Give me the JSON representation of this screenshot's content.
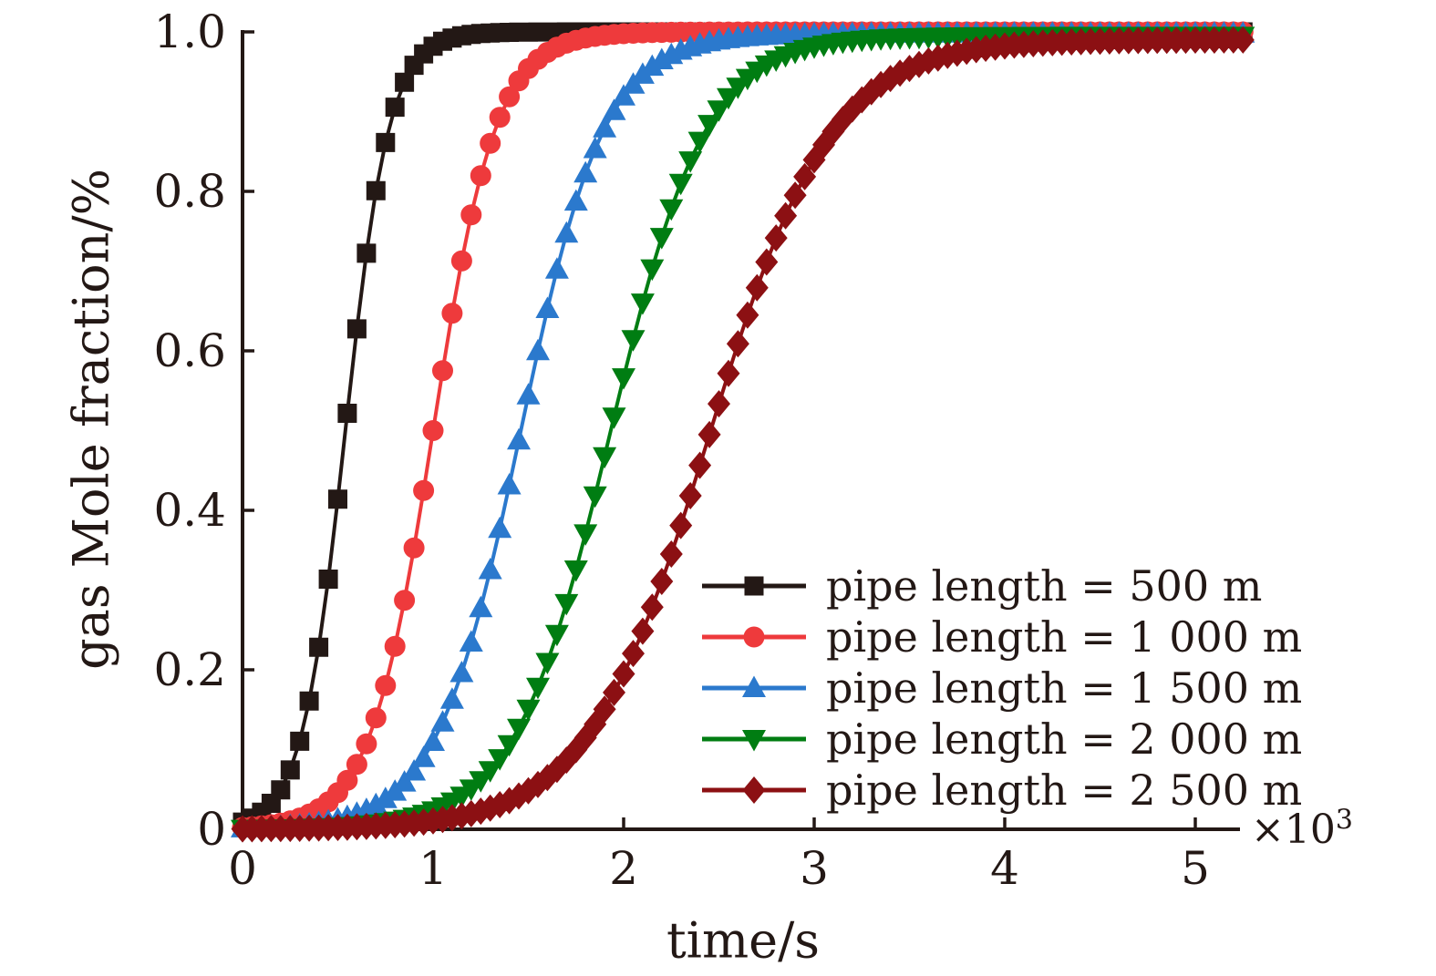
{
  "figure": {
    "background": "#ffffff",
    "text_color": "#231815",
    "axis_color": "#231815"
  },
  "chart_data": {
    "type": "line",
    "title": "",
    "xlabel": "time/s",
    "ylabel": "gas Mole fraction/%",
    "grid": false,
    "legend_position": "lower-right-inside",
    "x_axis": {
      "min": 0,
      "max": 5.35,
      "ticks": [
        0,
        1,
        2,
        3,
        4,
        5
      ],
      "tick_labels": [
        "0",
        "1",
        "2",
        "3",
        "4",
        "5"
      ],
      "offset_base": "×10",
      "offset_exponent": "3"
    },
    "y_axis": {
      "min": 0,
      "max": 1.0,
      "ticks": [
        0,
        0.2,
        0.4,
        0.6,
        0.8,
        1.0
      ],
      "tick_labels": [
        "0",
        "0.2",
        "0.4",
        "0.6",
        "0.8",
        "1.0"
      ]
    },
    "marker_x_step": 0.05,
    "x_data_max": 5.25,
    "sample_x": [
      0,
      0.25,
      0.5,
      0.75,
      1.0,
      1.25,
      1.5,
      1.75,
      2.0,
      2.25,
      2.5,
      2.75,
      3.0,
      3.25,
      3.5,
      3.75,
      4.0,
      4.25,
      4.5,
      4.75,
      5.0,
      5.25
    ],
    "series": [
      {
        "name": "pipe length = 500 m",
        "color": "#231815",
        "marker": "square",
        "sigmoid": {
          "t0": 0.54,
          "tau": 0.115,
          "ymax": 1.0
        },
        "sample_y": [
          0.009,
          0.074,
          0.414,
          0.861,
          0.982,
          0.998,
          1.0,
          1.0,
          1.0,
          1.0,
          1.0,
          1.0,
          1.0,
          1.0,
          1.0,
          1.0,
          1.0,
          1.0,
          1.0,
          1.0,
          1.0,
          1.0
        ]
      },
      {
        "name": "pipe length = 1 000 m",
        "color": "#ee3a3c",
        "marker": "circle",
        "sigmoid": {
          "t0": 1.0,
          "tau": 0.165,
          "ymax": 1.0
        },
        "sample_y": [
          0.002,
          0.01,
          0.046,
          0.18,
          0.5,
          0.82,
          0.954,
          0.99,
          0.998,
          1.0,
          1.0,
          1.0,
          1.0,
          1.0,
          1.0,
          1.0,
          1.0,
          1.0,
          1.0,
          1.0,
          1.0,
          1.0
        ]
      },
      {
        "name": "pipe length = 1 500 m",
        "color": "#2b79cd",
        "marker": "triangle-up",
        "sigmoid": {
          "t0": 1.46,
          "tau": 0.22,
          "ymax": 0.998
        },
        "sample_y": [
          0.001,
          0.004,
          0.013,
          0.038,
          0.11,
          0.277,
          0.544,
          0.787,
          0.919,
          0.971,
          0.989,
          0.995,
          0.997,
          0.998,
          0.998,
          0.998,
          0.998,
          0.998,
          0.998,
          0.998,
          0.998,
          0.998
        ]
      },
      {
        "name": "pipe length = 2 000 m",
        "color": "#007d12",
        "marker": "triangle-down",
        "sigmoid": {
          "t0": 1.93,
          "tau": 0.25,
          "ymax": 0.995
        },
        "sample_y": [
          0.0,
          0.001,
          0.003,
          0.009,
          0.024,
          0.061,
          0.15,
          0.325,
          0.567,
          0.778,
          0.903,
          0.959,
          0.981,
          0.99,
          0.993,
          0.994,
          0.995,
          0.995,
          0.995,
          0.995,
          0.995,
          0.995
        ]
      },
      {
        "name": "pipe length = 2 500 m",
        "color": "#8c1013",
        "marker": "diamond",
        "sigmoid": {
          "t0": 2.45,
          "tau": 0.32,
          "ymax": 0.99
        },
        "sample_y": [
          0.0,
          0.001,
          0.002,
          0.005,
          0.011,
          0.023,
          0.048,
          0.1,
          0.195,
          0.345,
          0.534,
          0.711,
          0.839,
          0.915,
          0.954,
          0.973,
          0.982,
          0.986,
          0.988,
          0.989,
          0.99,
          0.99
        ]
      }
    ]
  }
}
